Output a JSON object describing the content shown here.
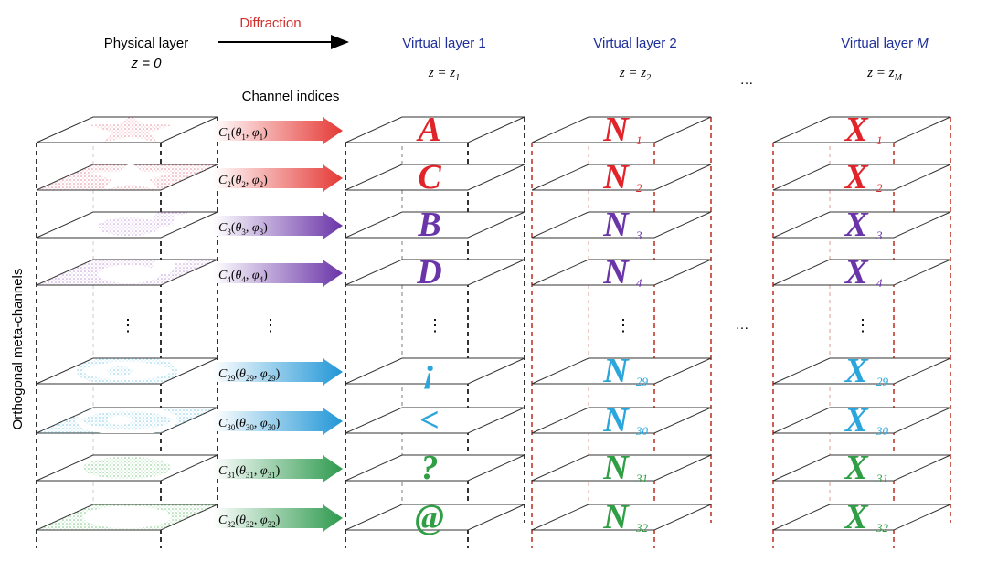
{
  "header": {
    "physical": {
      "title": "Physical layer",
      "z": "z = 0"
    },
    "diffraction": "Diffraction",
    "channel_indices": "Channel indices",
    "ellipsis": "…",
    "virtual": [
      {
        "title": "Virtual layer 1",
        "z_main": "z = z",
        "z_sub": "1"
      },
      {
        "title": "Virtual layer 2",
        "z_main": "z = z",
        "z_sub": "2"
      },
      {
        "title": "Virtual layer ",
        "title_var": "M",
        "z_main": "z = z",
        "z_sub": "M"
      }
    ]
  },
  "side_label": "Orthogonal meta-channels",
  "vertical_ellipsis": "⋮",
  "channels": [
    {
      "idx": "1",
      "color": "#e0242a",
      "layer1": "A",
      "arrow_color": "#e53935"
    },
    {
      "idx": "2",
      "color": "#e0242a",
      "layer1": "C",
      "arrow_color": "#e53935"
    },
    {
      "idx": "3",
      "color": "#6a35a8",
      "layer1": "B",
      "arrow_color": "#6a35a8"
    },
    {
      "idx": "4",
      "color": "#6a35a8",
      "layer1": "D",
      "arrow_color": "#6a35a8"
    },
    {
      "idx": "29",
      "color": "#2aa6dc",
      "layer1": "¡",
      "arrow_color": "#2196d6"
    },
    {
      "idx": "30",
      "color": "#2aa6dc",
      "layer1": "<",
      "arrow_color": "#2196d6"
    },
    {
      "idx": "31",
      "color": "#2f9e44",
      "layer1": "?",
      "arrow_color": "#2e9a4e"
    },
    {
      "idx": "32",
      "color": "#2f9e44",
      "layer1": "@",
      "arrow_color": "#2e9a4e"
    }
  ],
  "layer2_letter": "N",
  "layerM_letter": "X",
  "colors": {
    "red": "#e0242a",
    "purple": "#6a35a8",
    "cyan": "#2aa6dc",
    "green": "#2f9e44",
    "title_blue": "#1f2f9a",
    "dashed_red": "#c0392b"
  },
  "physical_patterns": [
    "star",
    "star-inverse",
    "rabbit",
    "rabbit-inverse",
    "ring",
    "ring-inverse",
    "ellipse",
    "ellipse-inverse"
  ]
}
